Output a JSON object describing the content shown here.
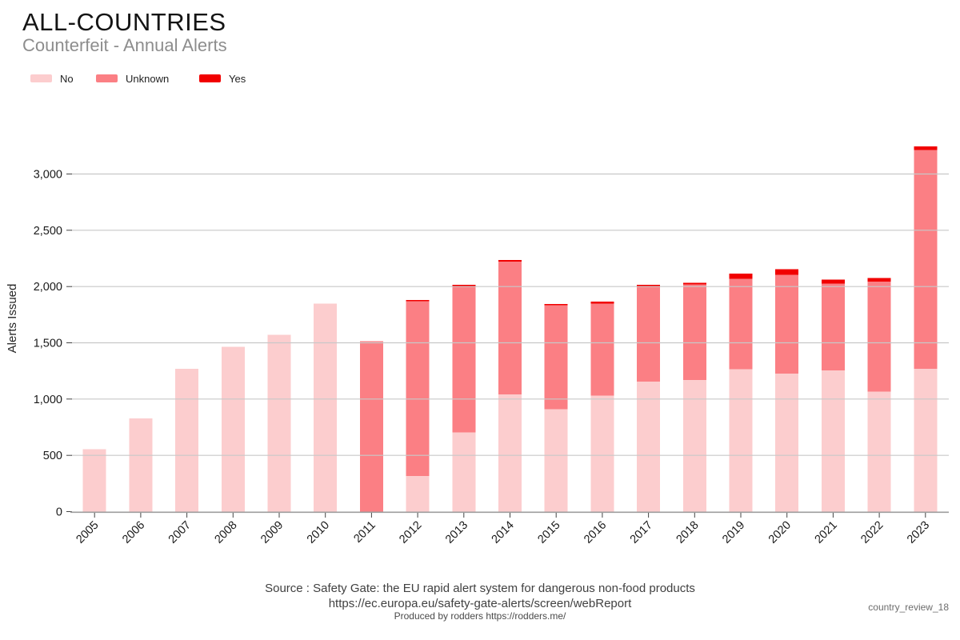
{
  "header": {
    "title": "ALL-COUNTRIES",
    "subtitle": "Counterfeit - Annual Alerts"
  },
  "legend": {
    "items": [
      {
        "label": "No",
        "color": "#fccdce"
      },
      {
        "label": "Unknown",
        "color": "#fb7f84"
      },
      {
        "label": "Yes",
        "color": "#f10000"
      }
    ]
  },
  "chart_data": {
    "type": "bar",
    "stacked": true,
    "title": "ALL-COUNTRIES",
    "subtitle": "Counterfeit - Annual Alerts",
    "xlabel": "",
    "ylabel": "Alerts Issued",
    "ylim": [
      0,
      3300
    ],
    "yticks": [
      0,
      500,
      1000,
      1500,
      2000,
      2500,
      3000
    ],
    "ytick_labels": [
      "0",
      "500",
      "1,000",
      "1,500",
      "2,000",
      "2,500",
      "3,000"
    ],
    "grid": true,
    "gridlines_above_bars": true,
    "legend_position": "top-left",
    "categories": [
      "2005",
      "2006",
      "2007",
      "2008",
      "2009",
      "2010",
      "2011",
      "2012",
      "2013",
      "2014",
      "2015",
      "2016",
      "2017",
      "2018",
      "2019",
      "2020",
      "2021",
      "2022",
      "2023"
    ],
    "series": [
      {
        "name": "No",
        "color": "#fccdce",
        "values": [
          555,
          830,
          1270,
          1465,
          1570,
          1850,
          0,
          315,
          705,
          1040,
          910,
          1030,
          1155,
          1170,
          1265,
          1225,
          1255,
          1065,
          1270
        ]
      },
      {
        "name": "Unknown",
        "color": "#fb7f84",
        "values": [
          0,
          0,
          0,
          0,
          0,
          0,
          1515,
          1555,
          1295,
          1180,
          925,
          820,
          845,
          850,
          805,
          880,
          770,
          980,
          1945
        ]
      },
      {
        "name": "Yes",
        "color": "#f10000",
        "values": [
          0,
          0,
          0,
          0,
          0,
          0,
          0,
          10,
          15,
          15,
          10,
          15,
          15,
          15,
          45,
          50,
          35,
          30,
          30
        ]
      }
    ]
  },
  "colors": {
    "gridline": "#c8c8c8",
    "axis_line": "#9e9e9e",
    "tick": "#444444"
  },
  "footer": {
    "source_line1": "Source : Safety Gate: the EU rapid alert system for dangerous non-food products",
    "source_line2": "https://ec.europa.eu/safety-gate-alerts/screen/webReport",
    "produced_by": "Produced by rodders https://rodders.me/",
    "report_id": "country_review_18"
  }
}
